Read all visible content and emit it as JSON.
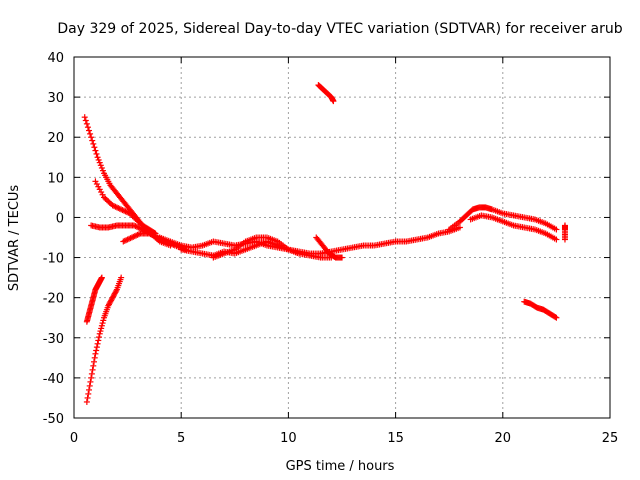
{
  "chart_data": {
    "type": "scatter",
    "title": "Day 329 of 2025, Sidereal Day-to-day VTEC variation (SDTVAR) for receiver arub",
    "xlabel": "GPS time / hours",
    "ylabel": "SDTVAR / TECUs",
    "xlim": [
      0,
      25
    ],
    "ylim": [
      -50,
      40
    ],
    "x_ticks": [
      "0",
      "5",
      "10",
      "15",
      "20",
      "25"
    ],
    "y_ticks": [
      "40",
      "30",
      "20",
      "10",
      "0",
      "-10",
      "-20",
      "-30",
      "-40",
      "-50"
    ],
    "grid": true,
    "marker": "+",
    "color": "#ff0000",
    "series": [
      {
        "name": "arc-top-left-decay",
        "x": [
          0.5,
          0.8,
          1.1,
          1.4,
          1.7,
          2.0,
          2.3,
          2.6,
          2.9,
          3.2,
          3.5,
          3.8
        ],
        "y": [
          25,
          20,
          15,
          11,
          8,
          6,
          4,
          2,
          0,
          -2,
          -3,
          -4
        ]
      },
      {
        "name": "arc-upper-left-2",
        "x": [
          1.0,
          1.4,
          1.8,
          2.2,
          2.6,
          3.0,
          3.4,
          3.8,
          4.2
        ],
        "y": [
          9,
          5,
          3,
          2,
          1,
          -1,
          -3,
          -5,
          -6
        ]
      },
      {
        "name": "arc-left-flat",
        "x": [
          0.8,
          1.2,
          1.6,
          2.0,
          2.4,
          2.8,
          3.2,
          3.6,
          4.0,
          4.5
        ],
        "y": [
          -2,
          -2.5,
          -2.5,
          -2,
          -2,
          -2,
          -3,
          -4,
          -6,
          -7
        ]
      },
      {
        "name": "arc-left-lower",
        "x": [
          2.3,
          2.7,
          3.1,
          3.5,
          3.9,
          4.3,
          4.7,
          5.2
        ],
        "y": [
          -6,
          -5,
          -4,
          -4,
          -5,
          -6,
          -7,
          -8
        ]
      },
      {
        "name": "arc-neg-left-1",
        "x": [
          0.6,
          0.7,
          0.8,
          0.9,
          1.0,
          1.1,
          1.2,
          1.3
        ],
        "y": [
          -26,
          -24,
          -22,
          -20,
          -18,
          -17,
          -16,
          -15
        ]
      },
      {
        "name": "arc-neg-left-2",
        "x": [
          0.6,
          0.8,
          1.0,
          1.2,
          1.4,
          1.6,
          1.8,
          2.0,
          2.2
        ],
        "y": [
          -46,
          -40,
          -34,
          -29,
          -25,
          -22,
          -20,
          -18,
          -15
        ]
      },
      {
        "name": "arc-mid-band",
        "x": [
          4.0,
          4.5,
          5.0,
          5.5,
          6.0,
          6.5,
          7.0,
          7.5,
          8.0,
          8.5,
          9.0,
          9.5,
          10.0,
          10.5,
          11.0,
          11.5,
          12.0,
          12.5,
          13.0,
          13.5,
          14.0,
          14.5,
          15.0,
          15.5,
          16.0,
          16.5,
          17.0,
          17.5,
          18.0
        ],
        "y": [
          -5,
          -6,
          -7,
          -7.5,
          -7,
          -6,
          -6.5,
          -7,
          -6.5,
          -6,
          -7,
          -7.5,
          -8,
          -8.5,
          -9,
          -9,
          -8.5,
          -8,
          -7.5,
          -7,
          -7,
          -6.5,
          -6,
          -6,
          -5.5,
          -5,
          -4,
          -3.5,
          -2.5
        ]
      },
      {
        "name": "arc-mid-lower",
        "x": [
          5.0,
          5.5,
          6.0,
          6.5,
          7.0,
          7.5,
          8.0,
          8.5,
          9.0,
          9.5,
          10.0,
          10.5,
          11.0,
          11.5,
          12.0
        ],
        "y": [
          -8,
          -8.5,
          -9,
          -9.5,
          -8.5,
          -9,
          -8,
          -7,
          -6,
          -7,
          -8,
          -9,
          -9.5,
          -10,
          -10
        ]
      },
      {
        "name": "arc-mid-wavy",
        "x": [
          6.5,
          7.0,
          7.5,
          8.0,
          8.5,
          9.0,
          9.5,
          10.0,
          10.5
        ],
        "y": [
          -10,
          -9,
          -8,
          -6,
          -5,
          -5,
          -6,
          -8,
          -9
        ]
      },
      {
        "name": "arc-center-spike",
        "x": [
          11.3,
          11.6,
          11.9,
          12.2,
          12.5
        ],
        "y": [
          -5,
          -7,
          -9,
          -10,
          -10
        ]
      },
      {
        "name": "arc-top-short",
        "x": [
          11.4,
          11.6,
          11.8,
          12.0,
          12.1
        ],
        "y": [
          33,
          32,
          31,
          30,
          29
        ]
      },
      {
        "name": "arc-right-hump",
        "x": [
          17.5,
          18.0,
          18.3,
          18.6,
          18.9,
          19.2,
          19.5,
          20.0,
          20.5,
          21.0,
          21.5,
          22.0,
          22.5
        ],
        "y": [
          -3,
          -1,
          0.5,
          2,
          2.5,
          2.5,
          2,
          1,
          0.5,
          0,
          -0.5,
          -1.5,
          -3
        ]
      },
      {
        "name": "arc-right-lower",
        "x": [
          18.5,
          19.0,
          19.5,
          20.0,
          20.5,
          21.0,
          21.5,
          22.0,
          22.5
        ],
        "y": [
          -0.5,
          0.5,
          0,
          -1,
          -2,
          -2.5,
          -3,
          -4,
          -5.5
        ]
      },
      {
        "name": "arc-right-neg",
        "x": [
          21.0,
          21.3,
          21.6,
          21.9,
          22.2,
          22.5
        ],
        "y": [
          -21,
          -21.5,
          -22.5,
          -23,
          -24,
          -25
        ]
      },
      {
        "name": "isolated-end",
        "x": [
          22.9,
          22.9,
          22.9
        ],
        "y": [
          -2,
          -3,
          -5.5
        ]
      }
    ]
  }
}
